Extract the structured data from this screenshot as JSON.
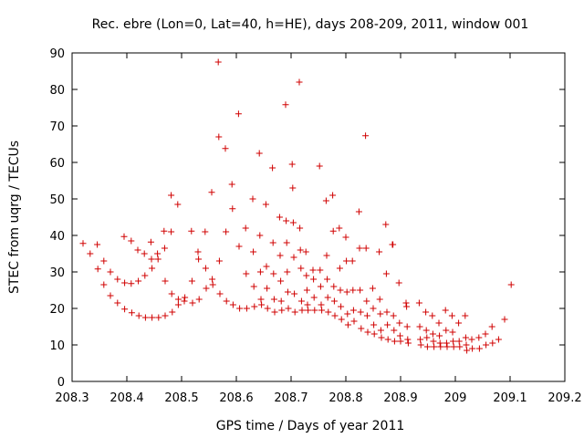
{
  "chart_data": {
    "type": "scatter",
    "title": "Rec. ebre (Lon=0, Lat=40, h=HE), days 208-209, 2011, window 001",
    "xlabel": "GPS time / Days of year 2011",
    "ylabel": "STEC from uqrg / TECUs",
    "xlim": [
      208.3,
      209.2
    ],
    "ylim": [
      0,
      90
    ],
    "xticks": [
      "208.3",
      "208.4",
      "208.5",
      "208.6",
      "208.7",
      "208.8",
      "208.9",
      "209",
      "209.1",
      "209.2"
    ],
    "yticks": [
      "0",
      "10",
      "20",
      "30",
      "40",
      "50",
      "60",
      "70",
      "80",
      "90"
    ],
    "grid": false,
    "marker": "+",
    "color": "#d00000",
    "points": [
      [
        208.32,
        37.8
      ],
      [
        208.333,
        35.0
      ],
      [
        208.346,
        37.5
      ],
      [
        208.347,
        30.8
      ],
      [
        208.358,
        33.0
      ],
      [
        208.358,
        26.5
      ],
      [
        208.37,
        30.0
      ],
      [
        208.37,
        23.5
      ],
      [
        208.383,
        28.0
      ],
      [
        208.383,
        21.5
      ],
      [
        208.395,
        39.7
      ],
      [
        208.396,
        27.0
      ],
      [
        208.396,
        19.8
      ],
      [
        208.408,
        38.5
      ],
      [
        208.408,
        26.8
      ],
      [
        208.409,
        18.8
      ],
      [
        208.42,
        36.0
      ],
      [
        208.421,
        27.5
      ],
      [
        208.422,
        18.0
      ],
      [
        208.432,
        35.0
      ],
      [
        208.433,
        29.0
      ],
      [
        208.434,
        17.5
      ],
      [
        208.444,
        38.2
      ],
      [
        208.445,
        33.5
      ],
      [
        208.446,
        31.0
      ],
      [
        208.446,
        17.5
      ],
      [
        208.456,
        35.0
      ],
      [
        208.457,
        33.5
      ],
      [
        208.458,
        17.5
      ],
      [
        208.468,
        41.2
      ],
      [
        208.469,
        36.5
      ],
      [
        208.47,
        27.5
      ],
      [
        208.47,
        18.0
      ],
      [
        208.481,
        51.0
      ],
      [
        208.481,
        41.0
      ],
      [
        208.482,
        24.0
      ],
      [
        208.483,
        19.0
      ],
      [
        208.493,
        48.5
      ],
      [
        208.494,
        22.5
      ],
      [
        208.494,
        21.0
      ],
      [
        208.505,
        22.0
      ],
      [
        208.506,
        23.0
      ],
      [
        208.518,
        41.2
      ],
      [
        208.519,
        27.5
      ],
      [
        208.52,
        21.5
      ],
      [
        208.53,
        35.5
      ],
      [
        208.531,
        33.5
      ],
      [
        208.532,
        22.5
      ],
      [
        208.543,
        41.0
      ],
      [
        208.544,
        31.0
      ],
      [
        208.545,
        25.5
      ],
      [
        208.555,
        51.8
      ],
      [
        208.556,
        28.0
      ],
      [
        208.557,
        26.5
      ],
      [
        208.567,
        87.5
      ],
      [
        208.568,
        67.0
      ],
      [
        208.569,
        33.0
      ],
      [
        208.57,
        24.0
      ],
      [
        208.58,
        63.8
      ],
      [
        208.581,
        41.0
      ],
      [
        208.582,
        22.0
      ],
      [
        208.592,
        54.0
      ],
      [
        208.593,
        47.3
      ],
      [
        208.594,
        21.0
      ],
      [
        208.604,
        73.3
      ],
      [
        208.605,
        37.0
      ],
      [
        208.606,
        20.0
      ],
      [
        208.617,
        42.0
      ],
      [
        208.618,
        29.5
      ],
      [
        208.619,
        20.0
      ],
      [
        208.63,
        50.0
      ],
      [
        208.631,
        35.5
      ],
      [
        208.632,
        26.0
      ],
      [
        208.633,
        20.5
      ],
      [
        208.642,
        62.5
      ],
      [
        208.643,
        40.0
      ],
      [
        208.644,
        30.0
      ],
      [
        208.645,
        22.5
      ],
      [
        208.646,
        21.0
      ],
      [
        208.654,
        48.5
      ],
      [
        208.655,
        31.5
      ],
      [
        208.656,
        25.5
      ],
      [
        208.657,
        20.0
      ],
      [
        208.666,
        58.5
      ],
      [
        208.667,
        38.0
      ],
      [
        208.668,
        29.5
      ],
      [
        208.669,
        22.5
      ],
      [
        208.67,
        19.0
      ],
      [
        208.679,
        45.0
      ],
      [
        208.68,
        34.5
      ],
      [
        208.681,
        27.5
      ],
      [
        208.682,
        22.0
      ],
      [
        208.683,
        19.5
      ],
      [
        208.69,
        75.8
      ],
      [
        208.691,
        44.0
      ],
      [
        208.692,
        38.0
      ],
      [
        208.693,
        30.0
      ],
      [
        208.694,
        24.5
      ],
      [
        208.695,
        20.0
      ],
      [
        208.702,
        59.5
      ],
      [
        208.703,
        53.0
      ],
      [
        208.704,
        43.5
      ],
      [
        208.705,
        34.0
      ],
      [
        208.706,
        24.0
      ],
      [
        208.707,
        19.0
      ],
      [
        208.715,
        82.0
      ],
      [
        208.716,
        42.0
      ],
      [
        208.717,
        36.0
      ],
      [
        208.718,
        31.0
      ],
      [
        208.719,
        22.0
      ],
      [
        208.72,
        19.5
      ],
      [
        208.727,
        35.5
      ],
      [
        208.728,
        29.0
      ],
      [
        208.729,
        25.0
      ],
      [
        208.73,
        21.0
      ],
      [
        208.731,
        19.5
      ],
      [
        208.74,
        30.5
      ],
      [
        208.741,
        28.0
      ],
      [
        208.742,
        23.0
      ],
      [
        208.743,
        19.5
      ],
      [
        208.752,
        59.0
      ],
      [
        208.753,
        30.5
      ],
      [
        208.754,
        26.0
      ],
      [
        208.755,
        21.0
      ],
      [
        208.756,
        19.5
      ],
      [
        208.764,
        49.5
      ],
      [
        208.765,
        34.5
      ],
      [
        208.766,
        28.0
      ],
      [
        208.767,
        23.0
      ],
      [
        208.768,
        19.0
      ],
      [
        208.776,
        51.0
      ],
      [
        208.777,
        41.2
      ],
      [
        208.778,
        26.0
      ],
      [
        208.779,
        22.0
      ],
      [
        208.78,
        18.0
      ],
      [
        208.788,
        42.0
      ],
      [
        208.789,
        31.0
      ],
      [
        208.79,
        25.0
      ],
      [
        208.791,
        20.5
      ],
      [
        208.792,
        17.0
      ],
      [
        208.8,
        39.5
      ],
      [
        208.801,
        33.0
      ],
      [
        208.802,
        24.5
      ],
      [
        208.803,
        18.5
      ],
      [
        208.804,
        15.5
      ],
      [
        208.812,
        33.0
      ],
      [
        208.813,
        25.0
      ],
      [
        208.814,
        19.5
      ],
      [
        208.815,
        16.5
      ],
      [
        208.824,
        46.5
      ],
      [
        208.825,
        36.5
      ],
      [
        208.826,
        25.0
      ],
      [
        208.827,
        19.0
      ],
      [
        208.828,
        14.5
      ],
      [
        208.836,
        67.3
      ],
      [
        208.837,
        36.5
      ],
      [
        208.838,
        22.0
      ],
      [
        208.839,
        18.0
      ],
      [
        208.84,
        13.5
      ],
      [
        208.849,
        25.5
      ],
      [
        208.85,
        20.0
      ],
      [
        208.851,
        15.5
      ],
      [
        208.852,
        13.0
      ],
      [
        208.861,
        35.5
      ],
      [
        208.862,
        22.5
      ],
      [
        208.863,
        18.5
      ],
      [
        208.864,
        14.0
      ],
      [
        208.865,
        12.0
      ],
      [
        208.873,
        43.0
      ],
      [
        208.874,
        29.5
      ],
      [
        208.875,
        19.0
      ],
      [
        208.876,
        15.5
      ],
      [
        208.877,
        11.5
      ],
      [
        208.885,
        37.5
      ],
      [
        208.886,
        37.5
      ],
      [
        208.887,
        18.0
      ],
      [
        208.888,
        14.0
      ],
      [
        208.889,
        11.0
      ],
      [
        208.897,
        27.0
      ],
      [
        208.898,
        16.0
      ],
      [
        208.899,
        12.5
      ],
      [
        208.9,
        11.0
      ],
      [
        208.91,
        21.5
      ],
      [
        208.911,
        20.5
      ],
      [
        208.912,
        15.0
      ],
      [
        208.913,
        11.5
      ],
      [
        208.914,
        10.5
      ],
      [
        208.934,
        21.5
      ],
      [
        208.935,
        15.0
      ],
      [
        208.936,
        11.5
      ],
      [
        208.937,
        10.0
      ],
      [
        208.946,
        19.0
      ],
      [
        208.947,
        14.0
      ],
      [
        208.948,
        12.0
      ],
      [
        208.949,
        9.5
      ],
      [
        208.958,
        18.0
      ],
      [
        208.959,
        13.0
      ],
      [
        208.96,
        11.0
      ],
      [
        208.961,
        9.5
      ],
      [
        208.97,
        16.0
      ],
      [
        208.971,
        12.5
      ],
      [
        208.972,
        10.5
      ],
      [
        208.973,
        9.5
      ],
      [
        208.982,
        19.5
      ],
      [
        208.983,
        14.0
      ],
      [
        208.984,
        10.5
      ],
      [
        208.985,
        9.5
      ],
      [
        208.994,
        18.0
      ],
      [
        208.995,
        13.5
      ],
      [
        208.996,
        11.0
      ],
      [
        208.997,
        9.5
      ],
      [
        209.006,
        16.0
      ],
      [
        209.007,
        11.0
      ],
      [
        209.008,
        9.5
      ],
      [
        209.018,
        18.0
      ],
      [
        209.019,
        12.0
      ],
      [
        209.02,
        10.0
      ],
      [
        209.021,
        8.5
      ],
      [
        209.03,
        11.5
      ],
      [
        209.031,
        9.0
      ],
      [
        209.043,
        12.0
      ],
      [
        209.044,
        9.0
      ],
      [
        209.055,
        13.0
      ],
      [
        209.056,
        10.0
      ],
      [
        209.067,
        15.0
      ],
      [
        209.068,
        10.5
      ],
      [
        209.079,
        11.5
      ],
      [
        209.09,
        17.0
      ],
      [
        209.102,
        26.5
      ]
    ]
  }
}
